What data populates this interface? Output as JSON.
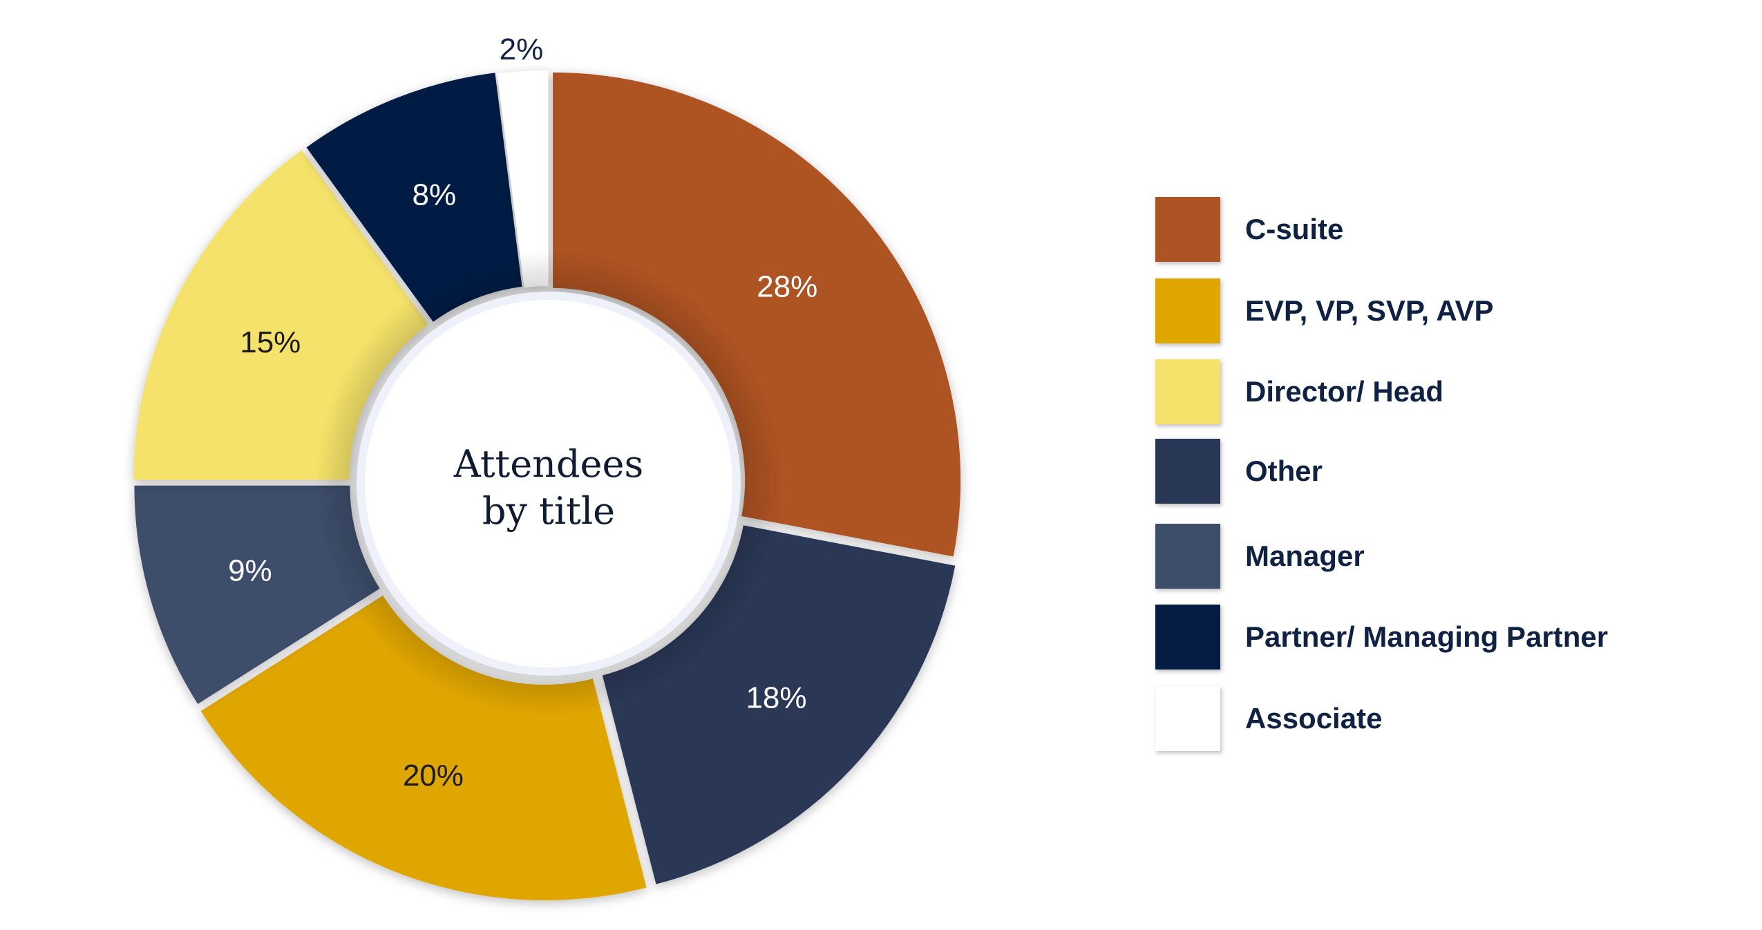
{
  "chart_data": {
    "type": "pie",
    "variant": "donut",
    "center_label": [
      "Attendees",
      "by title"
    ],
    "slices": [
      {
        "name": "C-suite",
        "value": 28,
        "label": "28%",
        "color": "#ae5324",
        "text_color": "#ffffff"
      },
      {
        "name": "Other",
        "value": 18,
        "label": "18%",
        "color": "#293757",
        "text_color": "#ffffff"
      },
      {
        "name": "EVP, VP, SVP, AVP",
        "value": 20,
        "label": "20%",
        "color": "#e0a600",
        "text_color": "#1b1b1b"
      },
      {
        "name": "Manager",
        "value": 9,
        "label": "9%",
        "color": "#3e4d6a",
        "text_color": "#ffffff"
      },
      {
        "name": "Director/ Head",
        "value": 15,
        "label": "15%",
        "color": "#f4e26a",
        "text_color": "#1b1b1b"
      },
      {
        "name": "Partner/ Managing Partner",
        "value": 8,
        "label": "8%",
        "color": "#051d44",
        "text_color": "#ffffff"
      },
      {
        "name": "Associate",
        "value": 2,
        "label": "2%",
        "color": "#ffffff",
        "text_color": "#0f2244"
      }
    ],
    "legend": {
      "placement": "right",
      "items": [
        {
          "name": "C-suite",
          "color": "#ae5324"
        },
        {
          "name": "EVP, VP, SVP, AVP",
          "color": "#e0a600"
        },
        {
          "name": "Director/ Head",
          "color": "#f4e26a"
        },
        {
          "name": "Other",
          "color": "#293757"
        },
        {
          "name": "Manager",
          "color": "#3e4d6a"
        },
        {
          "name": "Partner/ Managing Partner",
          "color": "#051d44"
        },
        {
          "name": "Associate",
          "color": "#ffffff"
        }
      ]
    }
  }
}
